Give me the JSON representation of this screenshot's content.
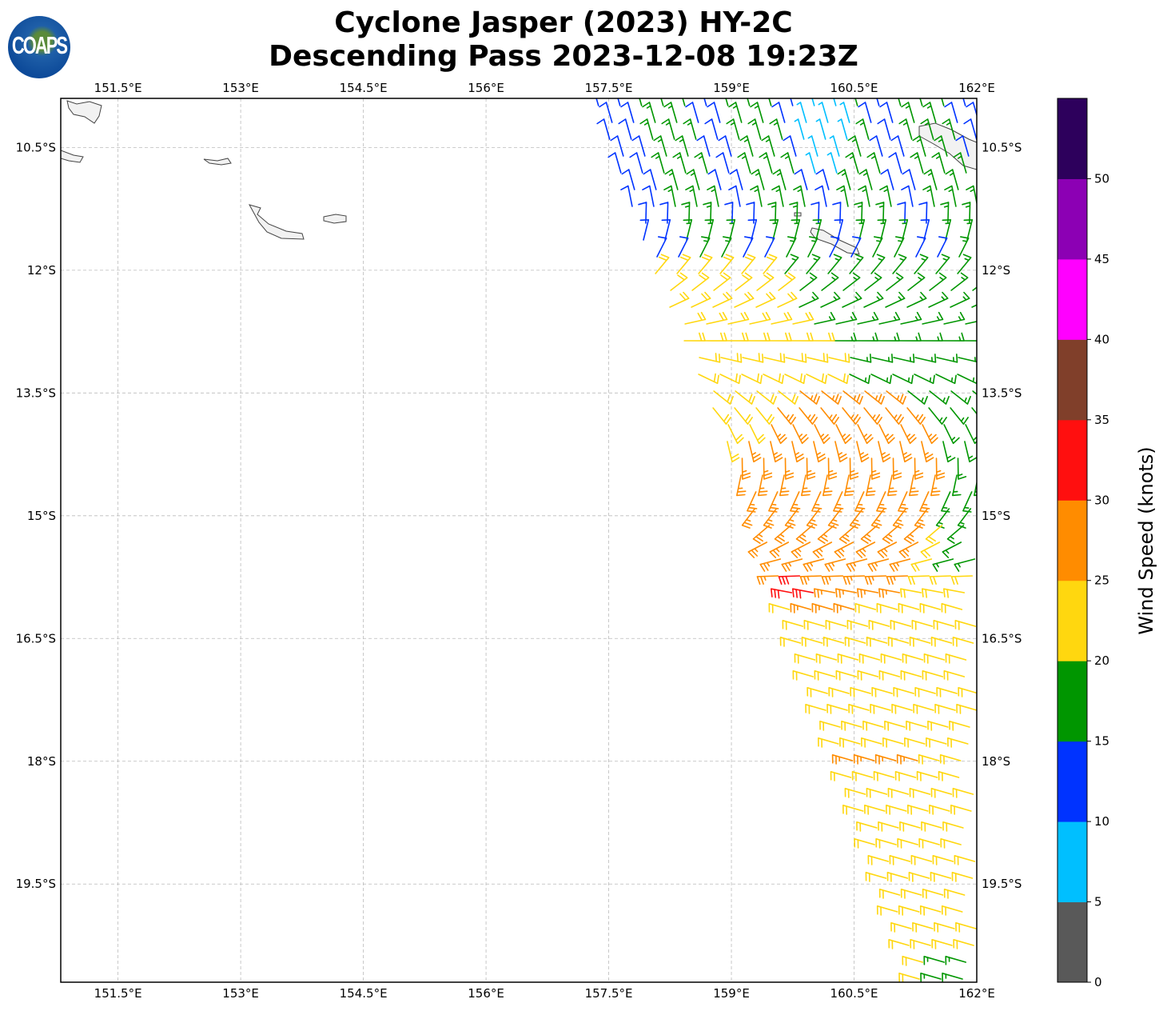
{
  "title": {
    "line1": "Cyclone Jasper (2023) HY-2C",
    "line2": "Descending Pass 2023-12-08 19:23Z"
  },
  "logo": {
    "text": "COAPS"
  },
  "map": {
    "lon_ticks": [
      "151.5°E",
      "153°E",
      "154.5°E",
      "156°E",
      "157.5°E",
      "159°E",
      "160.5°E",
      "162°E"
    ],
    "lon_values": [
      151.5,
      153,
      154.5,
      156,
      157.5,
      159,
      160.5,
      162
    ],
    "lat_ticks": [
      "10.5°S",
      "12°S",
      "13.5°S",
      "15°S",
      "16.5°S",
      "18°S",
      "19.5°S"
    ],
    "lat_values": [
      -10.5,
      -12,
      -13.5,
      -15,
      -16.5,
      -18,
      -19.5
    ],
    "lon_range": [
      150.8,
      162
    ],
    "lat_range": [
      -9.9,
      -20.7
    ]
  },
  "colorbar": {
    "label": "Wind Speed (knots)",
    "ticks": [
      "0",
      "5",
      "10",
      "15",
      "20",
      "25",
      "30",
      "35",
      "40",
      "45",
      "50"
    ],
    "levels": [
      0,
      5,
      10,
      15,
      20,
      25,
      30,
      35,
      40,
      45,
      50,
      55
    ],
    "colors": [
      "#595959",
      "#00bfff",
      "#0033ff",
      "#009600",
      "#ffd70f",
      "#ff8c00",
      "#ff0f0f",
      "#803f2a",
      "#ff00ff",
      "#8c00b4",
      "#2d005c"
    ]
  }
}
